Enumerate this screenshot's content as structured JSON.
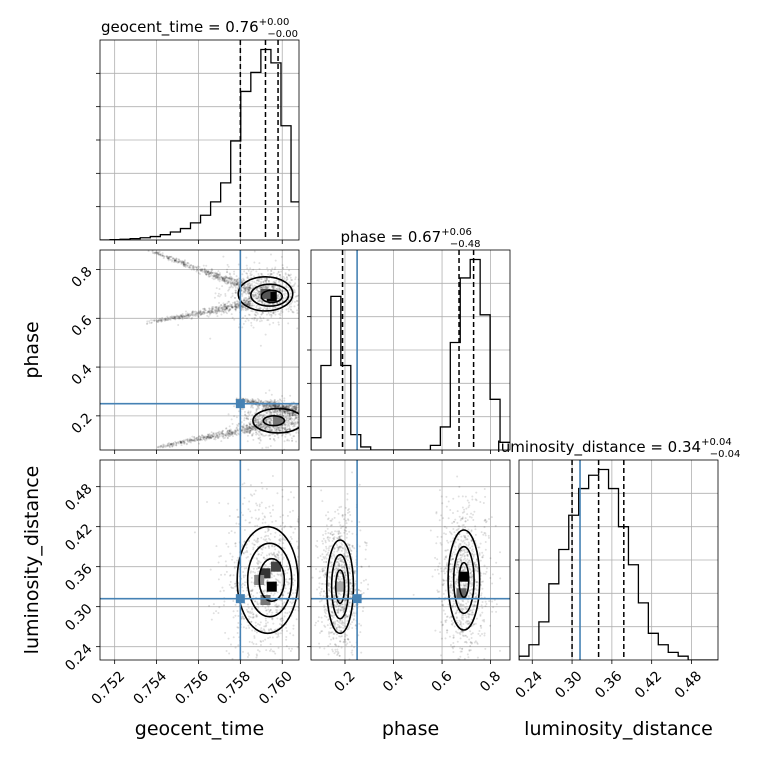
{
  "chart_data": {
    "type": "corner",
    "parameters": [
      "geocent_time",
      "phase",
      "luminosity_distance"
    ],
    "truths": {
      "geocent_time": 0.758,
      "phase": 0.25,
      "luminosity_distance": 0.312
    },
    "titles": [
      {
        "param": "geocent_time",
        "text": "geocent_time = 0.76",
        "sup": "+0.00",
        "sub": "−0.00"
      },
      {
        "param": "phase",
        "text": "phase = 0.67",
        "sup": "+0.06",
        "sub": "−0.48"
      },
      {
        "param": "luminosity_distance",
        "text": "luminosity_distance = 0.34",
        "sup": "+0.04",
        "sub": "−0.04"
      }
    ],
    "axes": {
      "geocent_time": {
        "range": [
          0.7513,
          0.7608
        ],
        "ticks": [
          "0.752",
          "0.754",
          "0.756",
          "0.758",
          "0.760"
        ],
        "label": "geocent_time"
      },
      "phase": {
        "range": [
          0.06,
          0.88
        ],
        "ticks": [
          "0.2",
          "0.4",
          "0.6",
          "0.8"
        ],
        "label": "phase"
      },
      "luminosity_distance": {
        "range": [
          0.22,
          0.52
        ],
        "ticks": [
          "0.24",
          "0.30",
          "0.36",
          "0.42",
          "0.48"
        ],
        "label": "luminosity_distance"
      }
    },
    "histograms": {
      "geocent_time": {
        "bin_edges": [
          0.7513,
          0.75178,
          0.75226,
          0.75274,
          0.75322,
          0.7537,
          0.75418,
          0.75466,
          0.75514,
          0.75562,
          0.7561,
          0.75658,
          0.75706,
          0.75754,
          0.75802,
          0.7585,
          0.75898,
          0.75946,
          0.75994,
          0.76042,
          0.7609
        ],
        "counts": [
          0,
          0.002,
          0.004,
          0.007,
          0.012,
          0.018,
          0.028,
          0.042,
          0.06,
          0.09,
          0.13,
          0.2,
          0.3,
          0.52,
          0.78,
          0.88,
          1.0,
          0.93,
          0.6,
          0.2
        ],
        "quantile_lines": [
          0.758,
          0.7592,
          0.7598
        ]
      },
      "phase": {
        "bin_edges": [
          0.06,
          0.101,
          0.142,
          0.183,
          0.224,
          0.265,
          0.306,
          0.347,
          0.388,
          0.429,
          0.47,
          0.511,
          0.552,
          0.593,
          0.634,
          0.675,
          0.716,
          0.757,
          0.798,
          0.839,
          0.88
        ],
        "counts": [
          0.08,
          0.55,
          1.0,
          0.55,
          0.1,
          0.02,
          0,
          0,
          0,
          0,
          0,
          0,
          0.03,
          0.15,
          0.7,
          1.12,
          1.24,
          0.88,
          0.33,
          0.05
        ],
        "quantile_lines": [
          0.19,
          0.67,
          0.73
        ]
      },
      "luminosity_distance": {
        "bin_edges": [
          0.22,
          0.235,
          0.25,
          0.265,
          0.28,
          0.295,
          0.31,
          0.325,
          0.34,
          0.355,
          0.37,
          0.385,
          0.4,
          0.415,
          0.43,
          0.445,
          0.46,
          0.475,
          0.49,
          0.505,
          0.52
        ],
        "counts": [
          0.02,
          0.08,
          0.2,
          0.4,
          0.58,
          0.76,
          0.9,
          0.97,
          1.0,
          0.9,
          0.7,
          0.5,
          0.3,
          0.14,
          0.08,
          0.04,
          0.02,
          0,
          0,
          0
        ],
        "quantile_lines": [
          0.3,
          0.34,
          0.378
        ]
      }
    },
    "contours": {
      "phase_vs_geocent_time": [
        {
          "level": "outer",
          "cx": 0.7592,
          "cy": 0.7,
          "rx": 0.0013,
          "ry": 0.07
        },
        {
          "level": "middle",
          "cx": 0.7594,
          "cy": 0.695,
          "rx": 0.0009,
          "ry": 0.045
        },
        {
          "level": "inner",
          "cx": 0.7595,
          "cy": 0.69,
          "rx": 0.0005,
          "ry": 0.025
        },
        {
          "level": "outer",
          "cx": 0.7598,
          "cy": 0.18,
          "rx": 0.0012,
          "ry": 0.05
        },
        {
          "level": "inner",
          "cx": 0.7596,
          "cy": 0.18,
          "rx": 0.0005,
          "ry": 0.02
        }
      ],
      "luminosity_distance_vs_geocent_time": [
        {
          "level": "outer",
          "cx": 0.7593,
          "cy": 0.34,
          "rx": 0.00145,
          "ry": 0.08
        },
        {
          "level": "middle",
          "cx": 0.7594,
          "cy": 0.34,
          "rx": 0.00105,
          "ry": 0.055
        },
        {
          "level": "inner",
          "cx": 0.7595,
          "cy": 0.34,
          "rx": 0.0006,
          "ry": 0.032
        }
      ],
      "luminosity_distance_vs_phase": [
        {
          "level": "outer",
          "cx": 0.18,
          "cy": 0.33,
          "rx": 0.055,
          "ry": 0.07
        },
        {
          "level": "middle",
          "cx": 0.18,
          "cy": 0.33,
          "rx": 0.035,
          "ry": 0.048
        },
        {
          "level": "inner",
          "cx": 0.18,
          "cy": 0.33,
          "rx": 0.018,
          "ry": 0.025
        },
        {
          "level": "outer",
          "cx": 0.69,
          "cy": 0.34,
          "rx": 0.065,
          "ry": 0.075
        },
        {
          "level": "middle",
          "cx": 0.69,
          "cy": 0.34,
          "rx": 0.042,
          "ry": 0.05
        },
        {
          "level": "inner",
          "cx": 0.69,
          "cy": 0.34,
          "rx": 0.02,
          "ry": 0.026
        }
      ]
    },
    "density_blocks": {
      "phase_vs_geocent_time": [
        {
          "x": 0.7595,
          "y": 0.69,
          "shade": "#000000"
        },
        {
          "x": 0.7592,
          "y": 0.7,
          "shade": "#555555"
        },
        {
          "x": 0.7598,
          "y": 0.18,
          "shade": "#777777"
        }
      ],
      "luminosity_distance_vs_geocent_time": [
        {
          "x": 0.7595,
          "y": 0.33,
          "shade": "#000000"
        },
        {
          "x": 0.7592,
          "y": 0.35,
          "shade": "#333333"
        },
        {
          "x": 0.7597,
          "y": 0.36,
          "shade": "#444444"
        },
        {
          "x": 0.7589,
          "y": 0.34,
          "shade": "#888888"
        },
        {
          "x": 0.7592,
          "y": 0.31,
          "shade": "#777777"
        }
      ],
      "luminosity_distance_vs_phase": [
        {
          "x": 0.69,
          "y": 0.345,
          "shade": "#000000"
        },
        {
          "x": 0.68,
          "y": 0.32,
          "shade": "#666666"
        },
        {
          "x": 0.18,
          "y": 0.33,
          "shade": "#aaaaaa"
        }
      ]
    },
    "scatter_clouds": {
      "phase_vs_geocent_time": [
        {
          "from": [
            0.7536,
            0.88
          ],
          "to": [
            0.7585,
            0.72
          ]
        },
        {
          "from": [
            0.7535,
            0.58
          ],
          "to": [
            0.7585,
            0.66
          ]
        },
        {
          "from": [
            0.754,
            0.07
          ],
          "to": [
            0.7592,
            0.16
          ]
        },
        {
          "from": [
            0.7578,
            0.27
          ],
          "to": [
            0.7607,
            0.22
          ]
        }
      ]
    },
    "colors": {
      "truth": "#4682b4",
      "contour": "#000000",
      "grid": "#b0b0b0",
      "scatter": "#000000"
    },
    "grid": true
  }
}
